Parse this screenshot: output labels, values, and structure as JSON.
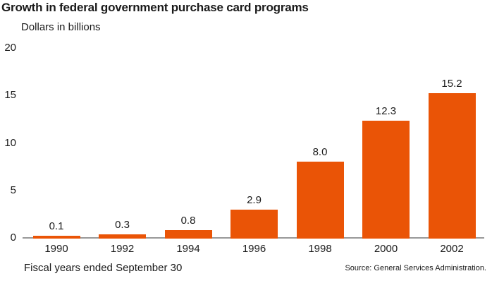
{
  "title": "Growth in federal government purchase card programs",
  "subtitle": "Dollars in billions",
  "footer": {
    "xaxis_note": "Fiscal years ended September 30",
    "source": "Source: General Services Administration."
  },
  "colors": {
    "bar": "#ea5406",
    "axis": "#999999",
    "text": "#1a1a1a",
    "background": "#ffffff"
  },
  "chart_data": {
    "type": "bar",
    "title": "Growth in federal government purchase card programs",
    "ylabel": "Dollars in billions",
    "xlabel": "Fiscal years ended September 30",
    "categories": [
      "1990",
      "1992",
      "1994",
      "1996",
      "1998",
      "2000",
      "2002"
    ],
    "values": [
      0.1,
      0.3,
      0.8,
      2.9,
      8.0,
      12.3,
      15.2
    ],
    "bar_labels": [
      "0.1",
      "0.3",
      "0.8",
      "2.9",
      "8.0",
      "12.3",
      "15.2"
    ],
    "ylim": [
      0,
      20
    ],
    "yticks": [
      0,
      5,
      10,
      15,
      20
    ],
    "grid": false,
    "legend": false
  }
}
